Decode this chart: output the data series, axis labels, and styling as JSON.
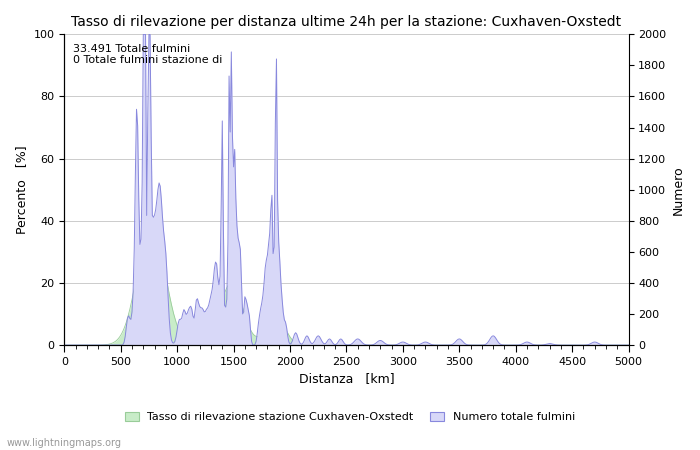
{
  "title": "Tasso di rilevazione per distanza ultime 24h per la stazione: Cuxhaven-Oxstedt",
  "xlabel": "Distanza   [km]",
  "ylabel_left": "Percento   [%]",
  "ylabel_right": "Numero",
  "annotation_line1": "33.491 Totale fulmini",
  "annotation_line2": "0 Totale fulmini stazione di",
  "xlim": [
    0,
    5000
  ],
  "ylim_left": [
    0,
    100
  ],
  "ylim_right": [
    0,
    2000
  ],
  "xticks": [
    0,
    500,
    1000,
    1500,
    2000,
    2500,
    3000,
    3500,
    4000,
    4500,
    5000
  ],
  "yticks_left": [
    0,
    20,
    40,
    60,
    80,
    100
  ],
  "yticks_right": [
    0,
    200,
    400,
    600,
    800,
    1000,
    1200,
    1400,
    1600,
    1800,
    2000
  ],
  "legend_label_green": "Tasso di rilevazione stazione Cuxhaven-Oxstedt",
  "legend_label_blue": "Numero totale fulmini",
  "watermark": "www.lightningmaps.org",
  "bg_color": "#ffffff",
  "grid_color": "#cccccc",
  "line_color": "#8888dd",
  "fill_color_blue": "#d8d8f8",
  "fill_color_green": "#c8ecc8",
  "title_fontsize": 10,
  "axis_fontsize": 9,
  "tick_fontsize": 8
}
